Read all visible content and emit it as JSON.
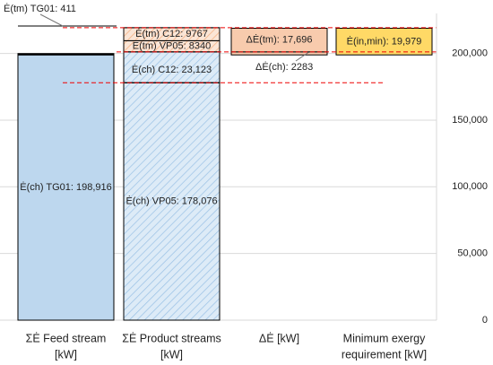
{
  "chart_data": {
    "type": "stacked_bar",
    "categories": [
      [
        "ΣĖ Feed stream",
        "[kW]"
      ],
      [
        "ΣĖ Product streams",
        "[kW]"
      ],
      [
        "ΔĖ [kW]"
      ],
      [
        "Minimum exergy",
        "requirement [kW]"
      ]
    ],
    "stacks": [
      {
        "segments": [
          {
            "value": 198916,
            "label": "Ė(ch) TG01: 198,916",
            "color": "#bdd7ee"
          },
          {
            "value": 411,
            "label": "Ė(tm) TG01: 411",
            "color": "#000000"
          }
        ]
      },
      {
        "segments": [
          {
            "value": 178076,
            "label": "Ė(ch) VP05: 178,076",
            "color": "#ddebf7",
            "hatch": true
          },
          {
            "value": 23123,
            "label": "Ė(ch) C12: 23,123",
            "color": "#ddebf7",
            "hatch": true
          },
          {
            "value": 8340,
            "label": "Ė(tm) VP05: 8340",
            "color": "#fbe5d6",
            "hatch": true
          },
          {
            "value": 9767,
            "label": "Ė(tm) C12: 9767",
            "color": "#fbe5d6",
            "hatch": true
          }
        ]
      },
      {
        "segments": [
          {
            "value": 2283,
            "label": "ΔĖ(ch): 2283",
            "color": "#f8cbad"
          },
          {
            "value": 17696,
            "label": "ΔĖ(tm): 17,696",
            "color": "#f8cbad"
          }
        ]
      },
      {
        "segments": [
          {
            "value": 19979,
            "label": "Ė(in,min): 19,979",
            "color": "#ffd966"
          }
        ]
      }
    ],
    "ylim": [
      0,
      230000
    ],
    "yticks": [
      0,
      {
        "value": 50000,
        "label": "50,000"
      },
      {
        "value": 100000,
        "label": "100,000"
      },
      {
        "value": 150000,
        "label": "150,000"
      },
      {
        "value": 200000,
        "label": "200,000"
      }
    ],
    "grid": true
  }
}
